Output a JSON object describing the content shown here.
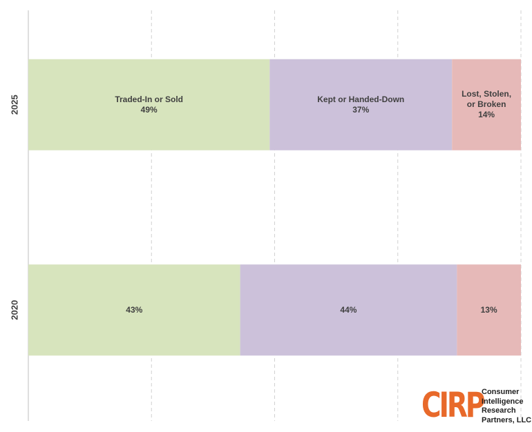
{
  "chart_data": {
    "type": "stacked_bar_horizontal",
    "categories": [
      "2025",
      "2020"
    ],
    "series": [
      {
        "name": "Traded-In or Sold",
        "color": "#d7e4bd",
        "values": [
          49,
          43
        ],
        "value_labels": [
          "49%",
          "43%"
        ]
      },
      {
        "name": "Kept or Handed-Down",
        "color": "#ccc1da",
        "values": [
          37,
          44
        ],
        "value_labels": [
          "37%",
          "44%"
        ]
      },
      {
        "name": "Lost, Stolen, or Broken",
        "color": "#e6b9b8",
        "values": [
          14,
          13
        ],
        "value_labels": [
          "14%",
          "13%"
        ]
      }
    ],
    "xlim": [
      0,
      100
    ],
    "xticks": [
      0,
      25,
      50,
      75,
      100
    ],
    "grid": true
  },
  "logo": {
    "mark": "CIRP",
    "text": "Consumer Intelligence Research Partners, LLC"
  }
}
